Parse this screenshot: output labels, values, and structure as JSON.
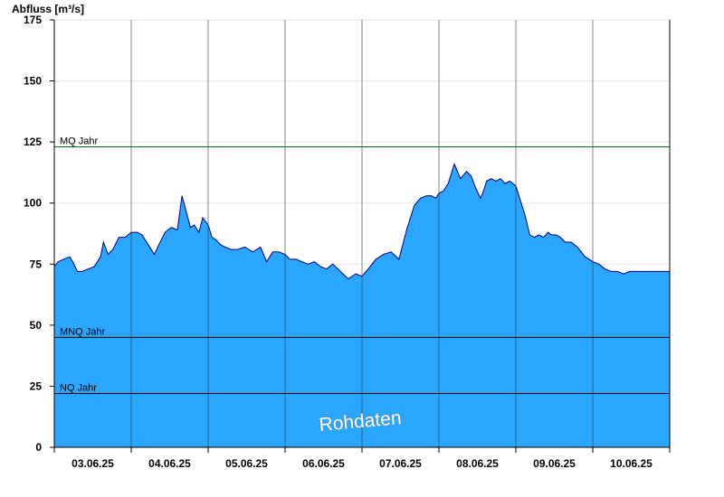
{
  "chart_data": {
    "type": "area",
    "ylabel": "Abfluss [m³/s]",
    "ylim": [
      0,
      175
    ],
    "yticks": [
      0,
      25,
      50,
      75,
      100,
      125,
      150,
      175
    ],
    "xlim": [
      0,
      8
    ],
    "day_labels": [
      "03.06.25",
      "04.06.25",
      "05.06.25",
      "06.06.25",
      "07.06.25",
      "08.06.25",
      "09.06.25",
      "10.06.25"
    ],
    "grid": true,
    "watermark": "Rohdaten",
    "fill_color": "#2aa6ff",
    "line_color": "#00007f",
    "reference_lines": [
      {
        "label": "MQ Jahr",
        "value": 123,
        "color": "#007000"
      },
      {
        "label": "MNQ Jahr",
        "value": 45,
        "color": "#000000"
      },
      {
        "label": "NQ Jahr",
        "value": 22,
        "color": "#000000"
      }
    ],
    "series": [
      {
        "x": [
          0,
          0.05,
          0.12,
          0.2,
          0.24,
          0.3,
          0.36,
          0.44,
          0.52,
          0.6,
          0.64,
          0.7,
          0.76,
          0.84,
          0.92,
          1.0,
          1.08,
          1.14,
          1.22,
          1.3,
          1.36,
          1.44,
          1.52,
          1.6,
          1.66,
          1.72,
          1.77,
          1.82,
          1.88,
          1.93,
          2.0,
          2.05,
          2.1,
          2.16,
          2.22,
          2.3,
          2.38,
          2.48,
          2.58,
          2.68,
          2.76,
          2.84,
          2.92,
          3.0,
          3.06,
          3.14,
          3.22,
          3.3,
          3.38,
          3.46,
          3.54,
          3.62,
          3.72,
          3.82,
          3.92,
          4.0,
          4.08,
          4.18,
          4.28,
          4.38,
          4.48,
          4.58,
          4.68,
          4.76,
          4.84,
          4.9,
          4.96,
          5.0,
          5.06,
          5.12,
          5.2,
          5.28,
          5.36,
          5.42,
          5.48,
          5.54,
          5.58,
          5.62,
          5.68,
          5.74,
          5.8,
          5.86,
          5.92,
          6.0,
          6.06,
          6.12,
          6.18,
          6.24,
          6.3,
          6.36,
          6.42,
          6.46,
          6.52,
          6.58,
          6.64,
          6.72,
          6.8,
          6.9,
          7.0,
          7.08,
          7.16,
          7.24,
          7.32,
          7.4,
          7.48,
          7.56,
          7.64,
          7.72,
          7.8,
          7.88,
          7.94,
          8.0
        ],
        "values": [
          74,
          76,
          77,
          78,
          76,
          72,
          72,
          73,
          74,
          78,
          84,
          79,
          81,
          86,
          86,
          88,
          88,
          87,
          83,
          79,
          83,
          88,
          90,
          89,
          103,
          96,
          90,
          91,
          88,
          94,
          91,
          86,
          85,
          83,
          82,
          81,
          81,
          82,
          80,
          82,
          76,
          80,
          80,
          79,
          77,
          77,
          76,
          75,
          76,
          74,
          73,
          75,
          72,
          69,
          71,
          70,
          73,
          77,
          79,
          80,
          77,
          89,
          99,
          102,
          103,
          103,
          102,
          104,
          105,
          108,
          116,
          110,
          113,
          111,
          106,
          102,
          105,
          109,
          110,
          109,
          110,
          108,
          109,
          107,
          101,
          95,
          87,
          86,
          87,
          86,
          88,
          87,
          87,
          86,
          84,
          84,
          82,
          78,
          76,
          75,
          73,
          72,
          72,
          71,
          72,
          72,
          72,
          72,
          72,
          72,
          72,
          72
        ]
      }
    ]
  }
}
